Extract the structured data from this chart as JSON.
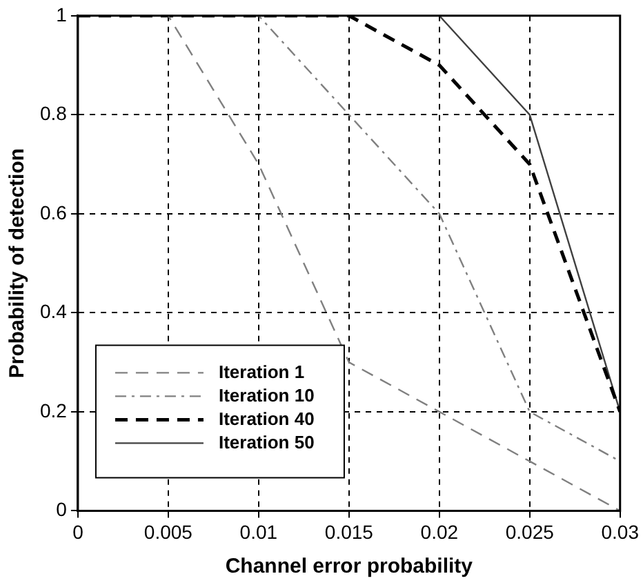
{
  "chart_data": {
    "type": "line",
    "xlabel": "Channel error probability",
    "ylabel": "Probability of detection",
    "x": [
      0,
      0.005,
      0.01,
      0.015,
      0.02,
      0.025,
      0.03
    ],
    "series": [
      {
        "name": "Iteration 1",
        "color": "#808080",
        "line_style": "dashed",
        "values": [
          1,
          1,
          0.7,
          0.3,
          0.2,
          0.1,
          0
        ]
      },
      {
        "name": "Iteration 10",
        "color": "#808080",
        "line_style": "dashdot",
        "values": [
          1,
          1,
          1,
          0.8,
          0.6,
          0.2,
          0.1
        ]
      },
      {
        "name": "Iteration 40",
        "color": "#000000",
        "line_style": "dashed",
        "values": [
          1,
          1,
          1,
          1,
          0.9,
          0.7,
          0.2
        ]
      },
      {
        "name": "Iteration 50",
        "color": "#404040",
        "line_style": "solid",
        "values": [
          1,
          1,
          1,
          1,
          1,
          0.8,
          0.2
        ]
      }
    ],
    "xlim": [
      0,
      0.03
    ],
    "xticks": [
      0,
      0.005,
      0.01,
      0.015,
      0.02,
      0.025,
      0.03
    ],
    "ylim": [
      0,
      1
    ],
    "yticks": [
      0,
      0.2,
      0.4,
      0.6,
      0.8,
      1
    ],
    "grid": true,
    "legend": "bottom left",
    "marker": "none"
  }
}
